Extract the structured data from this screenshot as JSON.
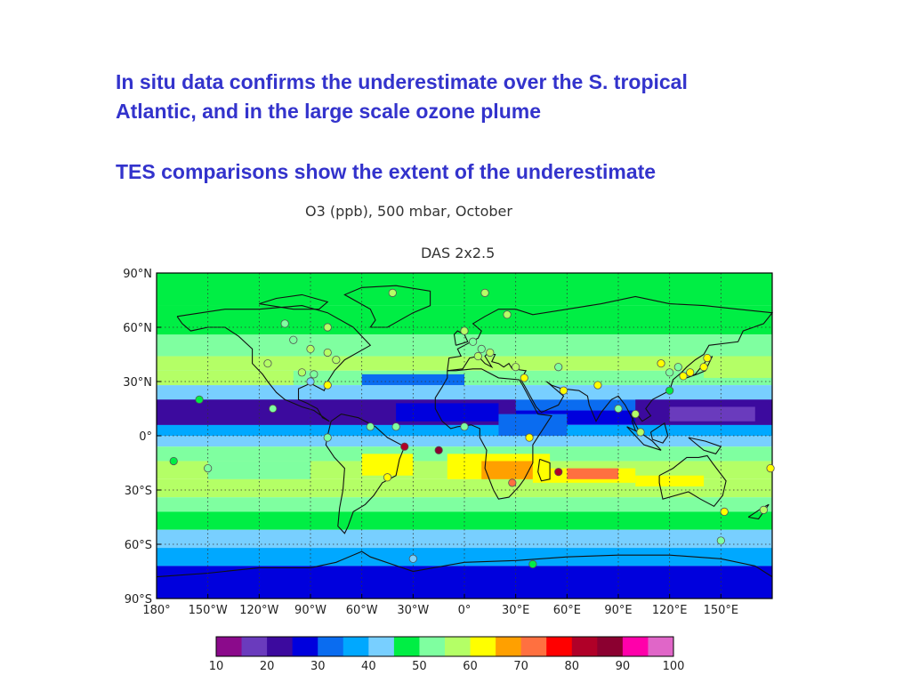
{
  "slide": {
    "headline_1": "In situ data confirms the underestimate over the S. tropical Atlantic, and in the large scale ozone plume",
    "headline_2": "TES comparisons show the extent of the underestimate",
    "text_color": "#3333cc"
  },
  "figure": {
    "title": "O3 (ppb), 500 mbar, October",
    "subtitle": "DAS 2x2.5",
    "lat_labels": [
      "90°N",
      "60°N",
      "30°N",
      "0°",
      "30°S",
      "60°S",
      "90°S"
    ],
    "lon_labels": [
      "180°",
      "150°W",
      "120°W",
      "90°W",
      "60°W",
      "30°W",
      "0°",
      "30°E",
      "60°E",
      "90°E",
      "120°E",
      "150°E"
    ],
    "colorbar": {
      "ticks": [
        "10",
        "20",
        "30",
        "40",
        "50",
        "60",
        "70",
        "80",
        "90",
        "100"
      ],
      "colors": [
        "#8b0a8b",
        "#6a3bbd",
        "#3c0a9e",
        "#0000dd",
        "#0a6cf0",
        "#00a8ff",
        "#78cfff",
        "#00ee44",
        "#7fffa0",
        "#b4ff66",
        "#ffff00",
        "#ffa000",
        "#ff7040",
        "#ff0000",
        "#b00028",
        "#8b0030",
        "#ff00aa",
        "#e066c8"
      ]
    },
    "stations": [
      {
        "lon": -42,
        "lat": 79,
        "ppb": 55
      },
      {
        "lon": 12,
        "lat": 79,
        "ppb": 55
      },
      {
        "lon": 25,
        "lat": 67,
        "ppb": 55
      },
      {
        "lon": -105,
        "lat": 62,
        "ppb": 50
      },
      {
        "lon": -80,
        "lat": 60,
        "ppb": 55
      },
      {
        "lon": -100,
        "lat": 53,
        "ppb": 50
      },
      {
        "lon": -90,
        "lat": 48,
        "ppb": 55
      },
      {
        "lon": -75,
        "lat": 42,
        "ppb": 55
      },
      {
        "lon": -80,
        "lat": 46,
        "ppb": 55
      },
      {
        "lon": -115,
        "lat": 40,
        "ppb": 55
      },
      {
        "lon": -95,
        "lat": 35,
        "ppb": 55
      },
      {
        "lon": -88,
        "lat": 34,
        "ppb": 50
      },
      {
        "lon": -90,
        "lat": 30,
        "ppb": 40
      },
      {
        "lon": -80,
        "lat": 28,
        "ppb": 60
      },
      {
        "lon": 0,
        "lat": 58,
        "ppb": 55
      },
      {
        "lon": 5,
        "lat": 52,
        "ppb": 50
      },
      {
        "lon": 10,
        "lat": 48,
        "ppb": 50
      },
      {
        "lon": 15,
        "lat": 46,
        "ppb": 55
      },
      {
        "lon": 8,
        "lat": 44,
        "ppb": 55
      },
      {
        "lon": 30,
        "lat": 38,
        "ppb": 55
      },
      {
        "lon": 35,
        "lat": 32,
        "ppb": 60
      },
      {
        "lon": 55,
        "lat": 38,
        "ppb": 50
      },
      {
        "lon": 58,
        "lat": 25,
        "ppb": 60
      },
      {
        "lon": 78,
        "lat": 28,
        "ppb": 60
      },
      {
        "lon": 115,
        "lat": 40,
        "ppb": 60
      },
      {
        "lon": 120,
        "lat": 35,
        "ppb": 50
      },
      {
        "lon": 125,
        "lat": 38,
        "ppb": 50
      },
      {
        "lon": 128,
        "lat": 33,
        "ppb": 60
      },
      {
        "lon": 132,
        "lat": 35,
        "ppb": 60
      },
      {
        "lon": 140,
        "lat": 38,
        "ppb": 60
      },
      {
        "lon": 142,
        "lat": 43,
        "ppb": 60
      },
      {
        "lon": 120,
        "lat": 25,
        "ppb": 45
      },
      {
        "lon": 90,
        "lat": 15,
        "ppb": 50
      },
      {
        "lon": 100,
        "lat": 12,
        "ppb": 55
      },
      {
        "lon": 103,
        "lat": 2,
        "ppb": 55
      },
      {
        "lon": -155,
        "lat": 20,
        "ppb": 45
      },
      {
        "lon": -112,
        "lat": 15,
        "ppb": 50
      },
      {
        "lon": -80,
        "lat": -1,
        "ppb": 50
      },
      {
        "lon": -55,
        "lat": 5,
        "ppb": 50
      },
      {
        "lon": -40,
        "lat": 5,
        "ppb": 50
      },
      {
        "lon": -35,
        "lat": -6,
        "ppb": 80
      },
      {
        "lon": -15,
        "lat": -8,
        "ppb": 85
      },
      {
        "lon": 0,
        "lat": 5,
        "ppb": 50
      },
      {
        "lon": 38,
        "lat": -1,
        "ppb": 60
      },
      {
        "lon": 55,
        "lat": -20,
        "ppb": 80
      },
      {
        "lon": 28,
        "lat": -26,
        "ppb": 70
      },
      {
        "lon": -45,
        "lat": -23,
        "ppb": 60
      },
      {
        "lon": -170,
        "lat": -14,
        "ppb": 45
      },
      {
        "lon": -150,
        "lat": -18,
        "ppb": 50
      },
      {
        "lon": 152,
        "lat": -42,
        "ppb": 60
      },
      {
        "lon": 175,
        "lat": -41,
        "ppb": 55
      },
      {
        "lon": 179,
        "lat": -18,
        "ppb": 60
      },
      {
        "lon": 150,
        "lat": -58,
        "ppb": 50
      },
      {
        "lon": -30,
        "lat": -68,
        "ppb": 40
      },
      {
        "lon": 40,
        "lat": -71,
        "ppb": 45
      }
    ]
  }
}
